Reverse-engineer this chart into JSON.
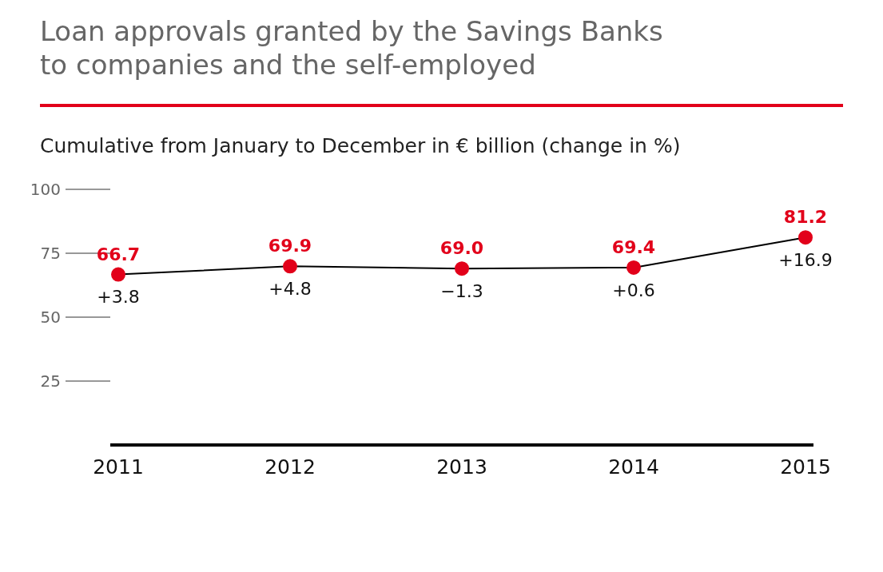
{
  "chart_data": {
    "type": "line",
    "title": "Loan approvals granted by the Savings Banks\nto companies and the self-employed",
    "subtitle": "Cumulative from January to December in € billion (change in %)",
    "categories": [
      "2011",
      "2012",
      "2013",
      "2014",
      "2015"
    ],
    "series": [
      {
        "color": "#e2001a",
        "values": [
          66.7,
          69.9,
          69.0,
          69.4,
          81.2
        ],
        "value_labels": [
          "66.7",
          "69.9",
          "69.0",
          "69.4",
          "81.2"
        ]
      }
    ],
    "ylim": [
      0,
      100
    ],
    "yticks": [
      25,
      50,
      75,
      100
    ],
    "grid": false,
    "legend": false,
    "marker": "circle",
    "annotations": [
      {
        "text": "+3.8",
        "x": "2011",
        "y": 66.7
      },
      {
        "text": "+4.8",
        "x": "2012",
        "y": 69.9
      },
      {
        "text": "−1.3",
        "x": "2013",
        "y": 69.0
      },
      {
        "text": "+0.6",
        "x": "2014",
        "y": 69.4
      },
      {
        "text": "+16.9",
        "x": "2015",
        "y": 81.2
      }
    ]
  }
}
